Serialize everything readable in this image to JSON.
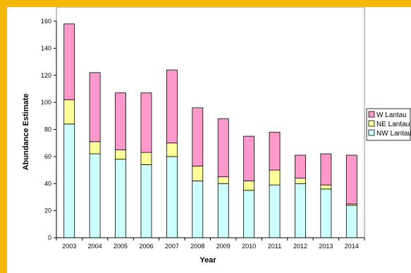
{
  "chart_data": {
    "type": "bar",
    "stacked": true,
    "title": "",
    "xlabel": "Year",
    "ylabel": "Abundance Estimate",
    "ylim": [
      0,
      160
    ],
    "yticks": [
      0,
      20,
      40,
      60,
      80,
      100,
      120,
      140,
      160
    ],
    "grid": false,
    "legend_position": "right",
    "categories": [
      "2003",
      "2004",
      "2005",
      "2006",
      "2007",
      "2008",
      "2009",
      "2010",
      "2011",
      "2012",
      "2013",
      "2014"
    ],
    "series": [
      {
        "name": "NW Lantau",
        "color": "#ccffff",
        "values": [
          84,
          62,
          58,
          54,
          60,
          42,
          40,
          35,
          39,
          40,
          36,
          24
        ]
      },
      {
        "name": "NE Lantau",
        "color": "#ffff99",
        "values": [
          18,
          9,
          7,
          9,
          10,
          11,
          5,
          7,
          11,
          4,
          3,
          1
        ]
      },
      {
        "name": "W Lantau",
        "color": "#ff99cc",
        "values": [
          56,
          51,
          42,
          44,
          54,
          43,
          43,
          33,
          28,
          17,
          23,
          36
        ]
      }
    ]
  }
}
